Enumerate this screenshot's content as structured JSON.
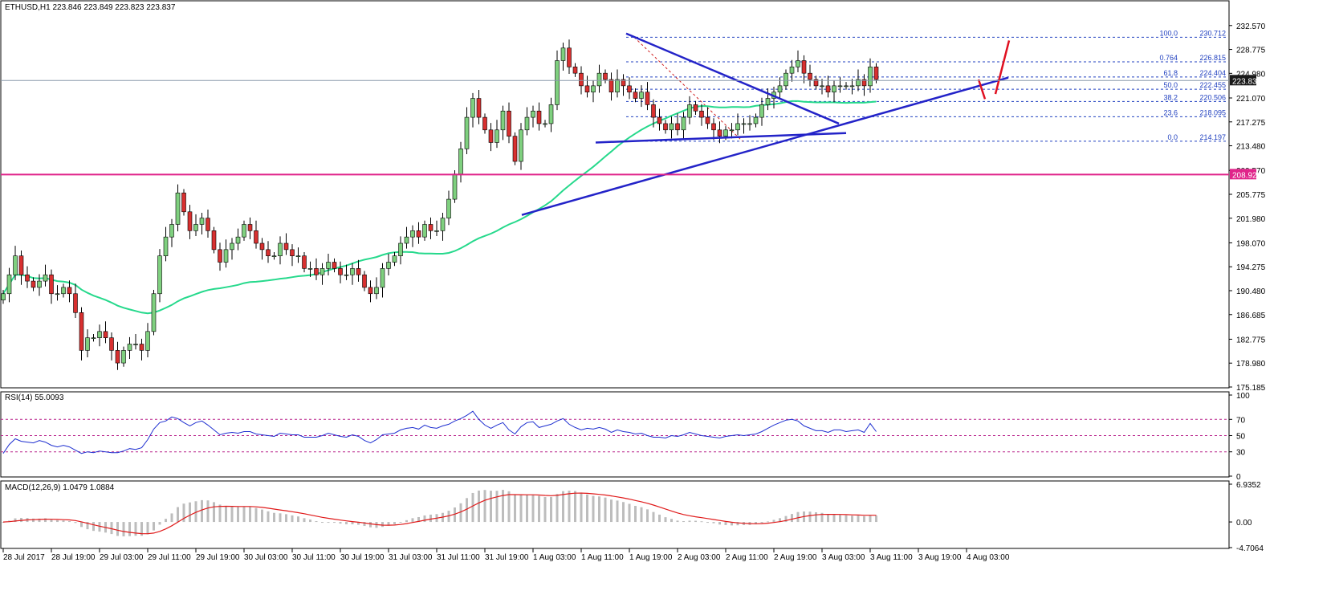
{
  "chart_data": {
    "type": "candlestick",
    "symbol_header": "ETHUSD,H1  223.846 223.849 223.823 223.837",
    "ylim": [
      175.185,
      234.2
    ],
    "y_ticks": [
      "232.570",
      "228.775",
      "224.980",
      "221.070",
      "217.275",
      "213.480",
      "209.570",
      "205.775",
      "201.980",
      "198.070",
      "194.275",
      "190.480",
      "186.685",
      "182.775",
      "178.980",
      "175.185"
    ],
    "x_ticks": [
      {
        "label": "28 Jul 2017",
        "i": 0
      },
      {
        "label": "28 Jul 19:00",
        "i": 8
      },
      {
        "label": "29 Jul 03:00",
        "i": 16
      },
      {
        "label": "29 Jul 11:00",
        "i": 24
      },
      {
        "label": "29 Jul 19:00",
        "i": 32
      },
      {
        "label": "30 Jul 03:00",
        "i": 40
      },
      {
        "label": "30 Jul 11:00",
        "i": 48
      },
      {
        "label": "30 Jul 19:00",
        "i": 56
      },
      {
        "label": "31 Jul 03:00",
        "i": 64
      },
      {
        "label": "31 Jul 11:00",
        "i": 72
      },
      {
        "label": "31 Jul 19:00",
        "i": 80
      },
      {
        "label": "1 Aug 03:00",
        "i": 88
      },
      {
        "label": "1 Aug 11:00",
        "i": 96
      },
      {
        "label": "1 Aug 19:00",
        "i": 104
      },
      {
        "label": "2 Aug 03:00",
        "i": 112
      },
      {
        "label": "2 Aug 11:00",
        "i": 120
      },
      {
        "label": "2 Aug 19:00",
        "i": 128
      },
      {
        "label": "3 Aug 03:00",
        "i": 136
      },
      {
        "label": "3 Aug 11:00",
        "i": 144
      },
      {
        "label": "3 Aug 19:00",
        "i": 152
      },
      {
        "label": "4 Aug 03:00",
        "i": 160
      }
    ],
    "closes": [
      190,
      193,
      196,
      193,
      192,
      191,
      192,
      193,
      190,
      190,
      191,
      190,
      187,
      181,
      183,
      183,
      184,
      183,
      181,
      179,
      181,
      182,
      182,
      181,
      184,
      190,
      196,
      199,
      201,
      206,
      203,
      200,
      201,
      202,
      200,
      197,
      195,
      197,
      198,
      199,
      201,
      200,
      198,
      197,
      196,
      196,
      198,
      197,
      196,
      196,
      194,
      194,
      193,
      194,
      195,
      194,
      193,
      193,
      194,
      193,
      191,
      190,
      191,
      194,
      195,
      196,
      198,
      199,
      200,
      199,
      201,
      200,
      200,
      202,
      205,
      209,
      213,
      218,
      221,
      218,
      216,
      214,
      216,
      219,
      215,
      211,
      216,
      218,
      219,
      217,
      217,
      220,
      227,
      229,
      226,
      225,
      223,
      222,
      223,
      225,
      224,
      222,
      224,
      223,
      222,
      221,
      222,
      220,
      218,
      217,
      216,
      217,
      216,
      218,
      220,
      219,
      218,
      217,
      216,
      215,
      216,
      216,
      217,
      217,
      217,
      218,
      220,
      221,
      222,
      223,
      225,
      226,
      227,
      225,
      224,
      223,
      223,
      222,
      223,
      223,
      223,
      223,
      224,
      223,
      226,
      224
    ],
    "last_price": 223.837,
    "support_line": 208.92,
    "fib_levels": [
      {
        "ratio": "100.0",
        "value": 230.712
      },
      {
        "ratio": "0.764",
        "value": 226.815
      },
      {
        "ratio": "61.8",
        "value": 224.404
      },
      {
        "ratio": "50.0",
        "value": 222.455
      },
      {
        "ratio": "38.2",
        "value": 220.506
      },
      {
        "ratio": "23.6",
        "value": 218.095
      },
      {
        "ratio": "0.0",
        "value": 214.197
      }
    ],
    "rsi": {
      "title": "RSI(14) 55.0093",
      "ticks": [
        "100",
        "70",
        "50",
        "30",
        "0"
      ],
      "levels": [
        70,
        50,
        30
      ],
      "values": [
        28,
        39,
        46,
        43,
        42,
        41,
        44,
        42,
        38,
        36,
        38,
        36,
        32,
        28,
        30,
        29,
        31,
        30,
        29,
        29,
        31,
        34,
        33,
        35,
        45,
        58,
        66,
        68,
        73,
        71,
        66,
        62,
        66,
        68,
        63,
        57,
        51,
        53,
        54,
        53,
        55,
        55,
        52,
        51,
        50,
        49,
        53,
        52,
        51,
        51,
        48,
        48,
        48,
        50,
        53,
        51,
        49,
        48,
        51,
        49,
        44,
        41,
        45,
        51,
        52,
        53,
        57,
        59,
        60,
        58,
        63,
        60,
        59,
        62,
        64,
        68,
        71,
        75,
        80,
        70,
        63,
        59,
        63,
        66,
        57,
        52,
        61,
        66,
        67,
        60,
        62,
        64,
        68,
        71,
        64,
        60,
        57,
        59,
        58,
        60,
        58,
        54,
        57,
        55,
        54,
        52,
        53,
        50,
        48,
        48,
        47,
        50,
        49,
        51,
        54,
        52,
        50,
        49,
        48,
        47,
        49,
        50,
        51,
        50,
        51,
        52,
        55,
        59,
        63,
        66,
        69,
        70,
        68,
        62,
        59,
        56,
        56,
        54,
        57,
        57,
        55,
        56,
        57,
        54,
        65,
        55
      ]
    },
    "macd": {
      "title": "MACD(12,26,9) 1.0479 1.0884",
      "ticks": [
        "6.9352",
        "0.00",
        "-4.7064"
      ],
      "ylim": [
        -4.7064,
        6.9352
      ]
    }
  }
}
